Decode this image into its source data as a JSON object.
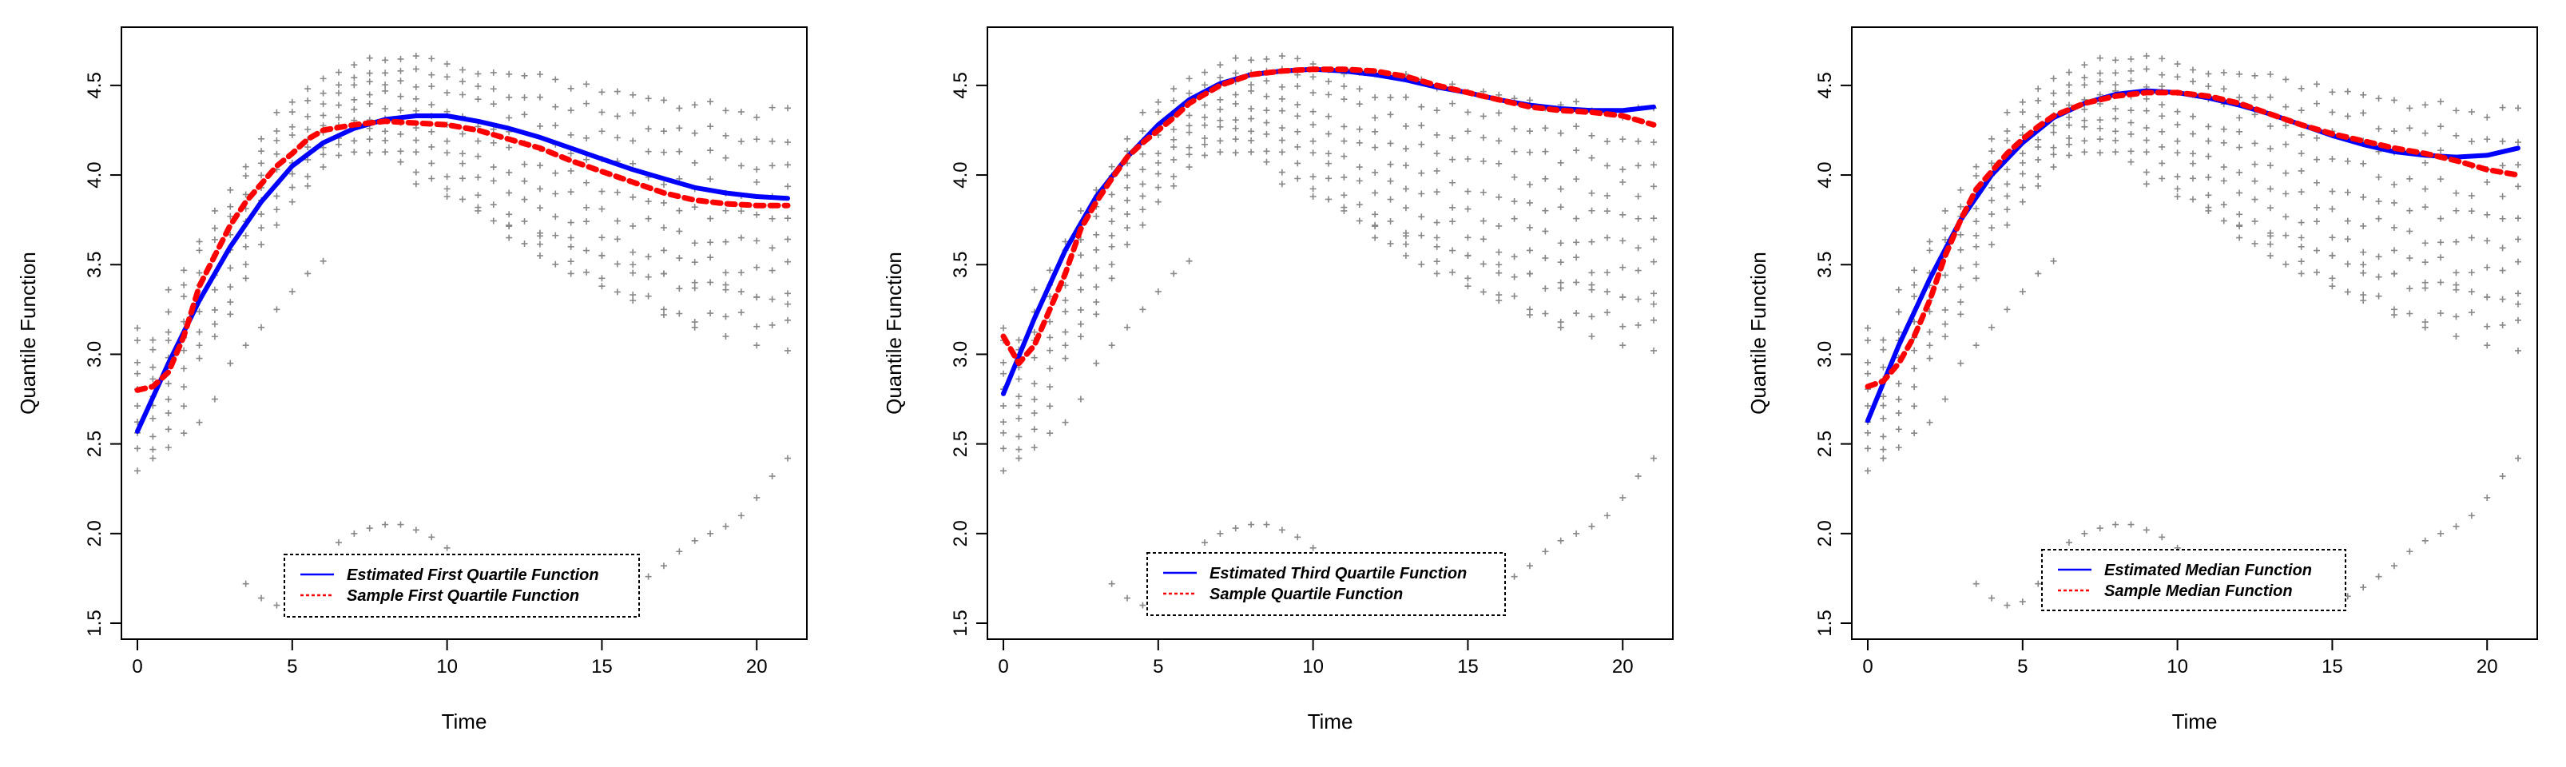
{
  "chart_data": [
    {
      "type": "line",
      "xlabel": "Time",
      "ylabel": "Quantile Function",
      "xlim": [
        0,
        21
      ],
      "ylim": [
        1.5,
        4.7
      ],
      "xticks": [
        0,
        5,
        10,
        15,
        20
      ],
      "yticks": [
        1.5,
        2.0,
        2.5,
        3.0,
        3.5,
        4.0,
        4.5
      ],
      "xtick_labels": [
        "0",
        "5",
        "10",
        "15",
        "20"
      ],
      "ytick_labels": [
        "1.5",
        "2.0",
        "2.5",
        "3.0",
        "3.5",
        "4.0",
        "4.5"
      ],
      "legend": {
        "position": "bottom-center",
        "entries": [
          "Estimated First Quartile Function",
          "Sample First Quartile Function"
        ]
      },
      "series": [
        {
          "name": "Estimated First Quartile Function",
          "color": "#0000ff",
          "style": "solid",
          "x": [
            0,
            1,
            2,
            3,
            4,
            5,
            6,
            7,
            8,
            9,
            10,
            11,
            12,
            13,
            14,
            15,
            16,
            17,
            18,
            19,
            20,
            21
          ],
          "y": [
            2.57,
            2.95,
            3.3,
            3.6,
            3.85,
            4.05,
            4.18,
            4.26,
            4.31,
            4.33,
            4.33,
            4.3,
            4.26,
            4.21,
            4.15,
            4.09,
            4.03,
            3.98,
            3.93,
            3.9,
            3.88,
            3.87
          ]
        },
        {
          "name": "Sample First Quartile Function",
          "color": "#ff0000",
          "style": "dashed",
          "x": [
            0,
            0.5,
            1,
            1.5,
            2,
            2.5,
            3,
            3.5,
            4,
            4.5,
            5,
            5.5,
            6,
            7,
            8,
            9,
            10,
            11,
            12,
            13,
            14,
            15,
            16,
            17,
            18,
            19,
            20,
            21
          ],
          "y": [
            2.8,
            2.82,
            2.9,
            3.1,
            3.38,
            3.55,
            3.72,
            3.85,
            3.95,
            4.05,
            4.12,
            4.2,
            4.25,
            4.28,
            4.3,
            4.29,
            4.28,
            4.25,
            4.2,
            4.15,
            4.08,
            4.02,
            3.96,
            3.9,
            3.86,
            3.84,
            3.83,
            3.83
          ]
        }
      ]
    },
    {
      "type": "line",
      "xlabel": "Time",
      "ylabel": "Quantile Function",
      "xlim": [
        0,
        21
      ],
      "ylim": [
        1.5,
        4.7
      ],
      "xticks": [
        0,
        5,
        10,
        15,
        20
      ],
      "yticks": [
        1.5,
        2.0,
        2.5,
        3.0,
        3.5,
        4.0,
        4.5
      ],
      "xtick_labels": [
        "0",
        "5",
        "10",
        "15",
        "20"
      ],
      "ytick_labels": [
        "1.5",
        "2.0",
        "2.5",
        "3.0",
        "3.5",
        "4.0",
        "4.5"
      ],
      "legend": {
        "position": "bottom-center",
        "entries": [
          "Estimated Third Quartile Function",
          "Sample Quartile Function"
        ]
      },
      "series": [
        {
          "name": "Estimated Third Quartile Function",
          "color": "#0000ff",
          "style": "solid",
          "x": [
            0,
            1,
            2,
            3,
            4,
            5,
            6,
            7,
            8,
            9,
            10,
            11,
            12,
            13,
            14,
            15,
            16,
            17,
            18,
            19,
            20,
            21
          ],
          "y": [
            2.78,
            3.2,
            3.58,
            3.88,
            4.1,
            4.28,
            4.42,
            4.51,
            4.56,
            4.58,
            4.59,
            4.58,
            4.56,
            4.53,
            4.49,
            4.46,
            4.42,
            4.39,
            4.37,
            4.36,
            4.36,
            4.38
          ]
        },
        {
          "name": "Sample Quartile Function",
          "color": "#ff0000",
          "style": "dashed",
          "x": [
            0,
            0.5,
            1,
            1.5,
            2,
            2.5,
            3,
            3.5,
            4,
            4.5,
            5,
            5.5,
            6,
            7,
            8,
            9,
            10,
            11,
            12,
            13,
            14,
            15,
            16,
            17,
            18,
            19,
            20,
            21
          ],
          "y": [
            3.1,
            2.95,
            3.05,
            3.25,
            3.45,
            3.7,
            3.85,
            3.98,
            4.1,
            4.18,
            4.25,
            4.32,
            4.4,
            4.5,
            4.56,
            4.58,
            4.59,
            4.59,
            4.58,
            4.55,
            4.5,
            4.46,
            4.42,
            4.38,
            4.36,
            4.35,
            4.33,
            4.28
          ]
        }
      ]
    },
    {
      "type": "line",
      "xlabel": "Time",
      "ylabel": "Quantile Function",
      "xlim": [
        0,
        21
      ],
      "ylim": [
        1.5,
        4.7
      ],
      "xticks": [
        0,
        5,
        10,
        15,
        20
      ],
      "yticks": [
        1.5,
        2.0,
        2.5,
        3.0,
        3.5,
        4.0,
        4.5
      ],
      "xtick_labels": [
        "0",
        "5",
        "10",
        "15",
        "20"
      ],
      "ytick_labels": [
        "1.5",
        "2.0",
        "2.5",
        "3.0",
        "3.5",
        "4.0",
        "4.5"
      ],
      "legend": {
        "position": "bottom-center",
        "entries": [
          "Estimated Median Function",
          "Sample Median Function"
        ]
      },
      "series": [
        {
          "name": "Estimated Median Function",
          "color": "#0000ff",
          "style": "solid",
          "x": [
            0,
            1,
            2,
            3,
            4,
            5,
            6,
            7,
            8,
            9,
            10,
            11,
            12,
            13,
            14,
            15,
            16,
            17,
            18,
            19,
            20,
            21
          ],
          "y": [
            2.63,
            3.05,
            3.42,
            3.75,
            4.0,
            4.18,
            4.32,
            4.4,
            4.45,
            4.47,
            4.46,
            4.43,
            4.39,
            4.34,
            4.28,
            4.22,
            4.17,
            4.13,
            4.11,
            4.1,
            4.11,
            4.15
          ]
        },
        {
          "name": "Sample Median Function",
          "color": "#ff0000",
          "style": "dashed",
          "x": [
            0,
            0.5,
            1,
            1.5,
            2,
            2.5,
            3,
            3.5,
            4,
            4.5,
            5,
            5.5,
            6,
            7,
            8,
            9,
            10,
            11,
            12,
            13,
            14,
            15,
            16,
            17,
            18,
            19,
            20,
            21
          ],
          "y": [
            2.82,
            2.85,
            2.95,
            3.1,
            3.3,
            3.55,
            3.75,
            3.92,
            4.02,
            4.12,
            4.2,
            4.27,
            4.33,
            4.4,
            4.44,
            4.46,
            4.46,
            4.44,
            4.4,
            4.34,
            4.28,
            4.23,
            4.19,
            4.15,
            4.12,
            4.08,
            4.03,
            4.0
          ]
        }
      ]
    }
  ],
  "scatter_cloud": {
    "color": "#888888",
    "marker": "+",
    "x": [
      0,
      0.5,
      1,
      1.5,
      2,
      2.5,
      3,
      3.5,
      4,
      4.5,
      5,
      5.5,
      6,
      6.5,
      7,
      7.5,
      8,
      8.5,
      9,
      9.5,
      10,
      10.5,
      11,
      11.5,
      12,
      12.5,
      13,
      13.5,
      14,
      14.5,
      15,
      15.5,
      16,
      16.5,
      17,
      17.5,
      18,
      18.5,
      19,
      19.5,
      20,
      20.5,
      21
    ],
    "lower_band": [
      2.45,
      2.45,
      2.55,
      2.7,
      2.95,
      3.05,
      3.2,
      3.4,
      3.6,
      3.72,
      3.85,
      3.92,
      4.02,
      4.08,
      4.12,
      4.12,
      4.1,
      4.06,
      4.01,
      3.96,
      3.9,
      3.84,
      3.78,
      3.72,
      3.66,
      3.6,
      3.55,
      3.5,
      3.45,
      3.4,
      3.36,
      3.32,
      3.28,
      3.25,
      3.22,
      3.2,
      3.18,
      3.17,
      3.16,
      3.15,
      3.15,
      3.15,
      3.15
    ],
    "upper_band": [
      3.2,
      3.15,
      3.4,
      3.55,
      3.7,
      3.88,
      3.98,
      4.12,
      4.25,
      4.38,
      4.45,
      4.52,
      4.58,
      4.62,
      4.66,
      4.68,
      4.7,
      4.7,
      4.7,
      4.69,
      4.68,
      4.67,
      4.66,
      4.65,
      4.64,
      4.63,
      4.62,
      4.61,
      4.6,
      4.59,
      4.57,
      4.56,
      4.55,
      4.54,
      4.52,
      4.51,
      4.5,
      4.49,
      4.48,
      4.47,
      4.46,
      4.45,
      4.45
    ],
    "outlier_series": [
      {
        "x": [
          0,
          0.5,
          1,
          1.5,
          2,
          2.5,
          3,
          3.5,
          4,
          4.5,
          5,
          5.5,
          6
        ],
        "y": [
          2.35,
          2.42,
          2.48,
          2.56,
          2.62,
          2.75,
          2.95,
          3.05,
          3.15,
          3.25,
          3.35,
          3.45,
          3.52
        ]
      },
      {
        "x": [
          3.5,
          4,
          4.5,
          5,
          5.5,
          6,
          6.5,
          7,
          7.5,
          8,
          8.5,
          9,
          9.5,
          10,
          10.5,
          11,
          11.5,
          12,
          12.5,
          13,
          13.5,
          14,
          14.5,
          15,
          15.5,
          16,
          16.5,
          17,
          17.5,
          18,
          18.5,
          19,
          19.5,
          20,
          20.5,
          21
        ],
        "y": [
          1.72,
          1.64,
          1.6,
          1.62,
          1.72,
          1.85,
          1.95,
          2.0,
          2.03,
          2.05,
          2.05,
          2.02,
          1.98,
          1.92,
          1.86,
          1.8,
          1.7,
          1.62,
          1.58,
          1.6,
          1.62,
          1.6,
          1.6,
          1.62,
          1.65,
          1.7,
          1.76,
          1.82,
          1.9,
          1.96,
          2.0,
          2.04,
          2.1,
          2.2,
          2.32,
          2.42
        ]
      },
      {
        "x": [
          12,
          13,
          14,
          15,
          16,
          17,
          18,
          19,
          20,
          21
        ],
        "y": [
          3.65,
          3.55,
          3.45,
          3.38,
          3.3,
          3.22,
          3.15,
          3.1,
          3.05,
          3.02
        ]
      },
      {
        "x": [
          9,
          10,
          11,
          12,
          13,
          14,
          15,
          16,
          17,
          18,
          19,
          20,
          21
        ],
        "y": [
          3.95,
          3.88,
          3.8,
          3.72,
          3.66,
          3.6,
          3.55,
          3.5,
          3.45,
          3.4,
          3.36,
          3.32,
          3.28
        ]
      }
    ]
  }
}
